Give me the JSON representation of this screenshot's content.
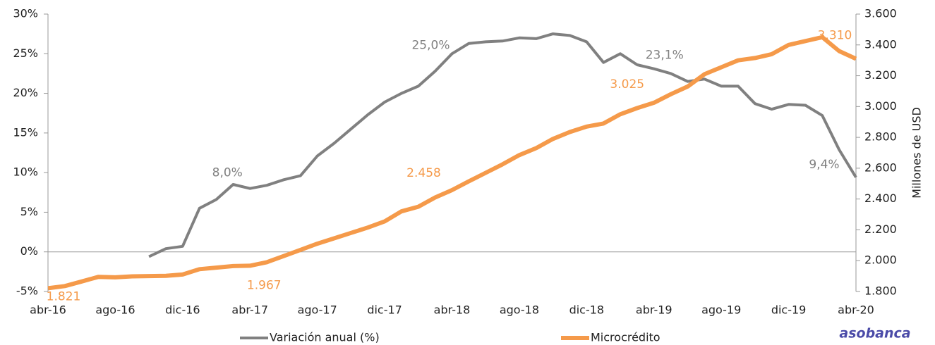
{
  "chart_data": {
    "type": "line",
    "categories": [
      "abr-16",
      null,
      null,
      null,
      "ago-16",
      null,
      null,
      null,
      "dic-16",
      null,
      null,
      null,
      "abr-17",
      null,
      null,
      null,
      "ago-17",
      null,
      null,
      null,
      "dic-17",
      null,
      null,
      null,
      "abr-18",
      null,
      null,
      null,
      "ago-18",
      null,
      null,
      null,
      "dic-18",
      null,
      null,
      null,
      "abr-19",
      null,
      null,
      null,
      "ago-19",
      null,
      null,
      null,
      "dic-19",
      null,
      null,
      null,
      "abr-20"
    ],
    "series": [
      {
        "name": "Variación anual (%)",
        "color": "#808080",
        "axis": "y",
        "values": [
          null,
          null,
          null,
          null,
          null,
          null,
          -0.6,
          0.4,
          0.7,
          5.5,
          6.6,
          8.5,
          8.0,
          8.4,
          9.1,
          9.6,
          12.1,
          13.7,
          15.5,
          17.3,
          18.9,
          20.0,
          20.9,
          22.8,
          25.0,
          26.3,
          26.5,
          26.6,
          27.0,
          26.9,
          27.5,
          27.3,
          26.5,
          23.9,
          25.0,
          23.6,
          23.1,
          22.5,
          21.5,
          21.8,
          20.9,
          20.9,
          18.7,
          18.0,
          18.6,
          18.5,
          17.2,
          12.9,
          9.4
        ],
        "value_labels": [
          null,
          null,
          null,
          null,
          null,
          null,
          null,
          null,
          null,
          null,
          null,
          null,
          "8,0%",
          null,
          null,
          null,
          null,
          null,
          null,
          null,
          null,
          null,
          null,
          null,
          "25,0%",
          null,
          null,
          null,
          null,
          null,
          null,
          null,
          null,
          null,
          null,
          null,
          "23,1%",
          null,
          null,
          null,
          null,
          null,
          null,
          null,
          null,
          null,
          null,
          null,
          "9,4%"
        ]
      },
      {
        "name": "Microcrédito",
        "color": "#f59a4a",
        "axis": "y2",
        "values": [
          1821,
          1835,
          1865,
          1895,
          1892,
          1898,
          1900,
          1902,
          1910,
          1945,
          1955,
          1965,
          1967,
          1990,
          2030,
          2070,
          2110,
          2145,
          2180,
          2215,
          2255,
          2320,
          2350,
          2410,
          2458,
          2515,
          2570,
          2625,
          2685,
          2730,
          2790,
          2835,
          2870,
          2890,
          2950,
          2990,
          3025,
          3080,
          3130,
          3210,
          3255,
          3300,
          3315,
          3340,
          3400,
          3425,
          3450,
          3360,
          3310
        ],
        "value_labels": [
          "1.821",
          null,
          null,
          null,
          null,
          null,
          null,
          null,
          null,
          null,
          null,
          null,
          "1.967",
          null,
          null,
          null,
          null,
          null,
          null,
          null,
          null,
          null,
          null,
          null,
          "2.458",
          null,
          null,
          null,
          null,
          null,
          null,
          null,
          null,
          null,
          null,
          null,
          "3.025",
          null,
          null,
          null,
          null,
          null,
          null,
          null,
          null,
          null,
          null,
          null,
          "3.310"
        ]
      }
    ],
    "ylim": [
      -5,
      30
    ],
    "yticks": [
      {
        "value": -5,
        "label": "-5%"
      },
      {
        "value": 0,
        "label": "0%"
      },
      {
        "value": 5,
        "label": "5%"
      },
      {
        "value": 10,
        "label": "10%"
      },
      {
        "value": 15,
        "label": "15%"
      },
      {
        "value": 20,
        "label": "20%"
      },
      {
        "value": 25,
        "label": "25%"
      },
      {
        "value": 30,
        "label": "30%"
      }
    ],
    "y2lim": [
      1800,
      3600
    ],
    "y2ticks": [
      {
        "value": 1800,
        "label": "1.800"
      },
      {
        "value": 2000,
        "label": "2.000"
      },
      {
        "value": 2200,
        "label": "2.200"
      },
      {
        "value": 2400,
        "label": "2.400"
      },
      {
        "value": 2600,
        "label": "2.600"
      },
      {
        "value": 2800,
        "label": "2.800"
      },
      {
        "value": 3000,
        "label": "3.000"
      },
      {
        "value": 3200,
        "label": "3.200"
      },
      {
        "value": 3400,
        "label": "3.400"
      },
      {
        "value": 3600,
        "label": "3.600"
      }
    ],
    "y2label": "Millones de USD",
    "logo": "asobanca"
  }
}
